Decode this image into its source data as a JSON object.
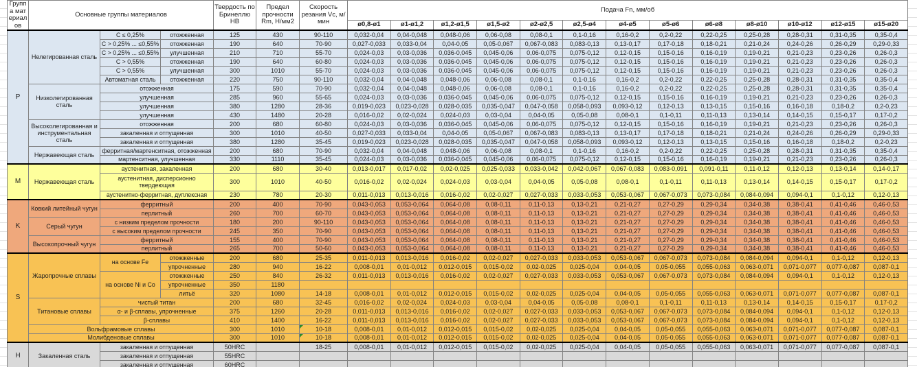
{
  "colors": {
    "sections": {
      "P": "#dce6f1",
      "M": "#feff9c",
      "K": "#efa87c",
      "S": "#f8c254",
      "H": "#d9d9d9"
    },
    "header_bg": "#ffffff",
    "inner_border": "#828282",
    "section_border": "#000000",
    "note_triangle": "#2e8b2e"
  },
  "table": {
    "header": {
      "group": "Группа материалов",
      "materials": "Основные группы материалов",
      "hardness": "Твердость по Бринеллю HB",
      "strength": "Предел прочности Rm, Н/мм2",
      "speed": "Скорость резания Vc, м/мин",
      "feed": "Подача Fn, мм/об",
      "feed_cols": [
        "ø0,8-ø1",
        "ø1-ø1,2",
        "ø1,2-ø1,5",
        "ø1,5-ø2",
        "ø2-ø2,5",
        "ø2,5-ø4",
        "ø4-ø5",
        "ø5-ø6",
        "ø6-ø8",
        "ø8-ø10",
        "ø10-ø12",
        "ø12-ø15",
        "ø15-ø20"
      ]
    },
    "feed_profiles": {
      "A": [
        "0,032-0,04",
        "0,04-0,048",
        "0,048-0,06",
        "0,06-0,08",
        "0,08-0,1",
        "0,1-0,16",
        "0,16-0,2",
        "0,2-0,22",
        "0,22-0,25",
        "0,25-0,28",
        "0,28-0,31",
        "0,31-0,35",
        "0,35-0,4"
      ],
      "B": [
        "0,027-0,033",
        "0,033-0,04",
        "0,04-0,05",
        "0,05-0,067",
        "0,067-0,083",
        "0,083-0,13",
        "0,13-0,17",
        "0,17-0,18",
        "0,18-0,21",
        "0,21-0,24",
        "0,24-0,26",
        "0,26-0,29",
        "0,29-0,33"
      ],
      "C": [
        "0,024-0,03",
        "0,03-0,036",
        "0,036-0,045",
        "0,045-0,06",
        "0,06-0,075",
        "0,075-0,12",
        "0,12-0,15",
        "0,15-0,16",
        "0,16-0,19",
        "0,19-0,21",
        "0,21-0,23",
        "0,23-0,26",
        "0,26-0,3"
      ],
      "D": [
        "0,019-0,023",
        "0,023-0,028",
        "0,028-0,035",
        "0,035-0,047",
        "0,047-0,058",
        "0,058-0,093",
        "0,093-0,12",
        "0,12-0,13",
        "0,13-0,15",
        "0,15-0,16",
        "0,16-0,18",
        "0,18-0,2",
        "0,2-0,23"
      ],
      "E": [
        "0,016-0,02",
        "0,02-0,024",
        "0,024-0,03",
        "0,03-0,04",
        "0,04-0,05",
        "0,05-0,08",
        "0,08-0,1",
        "0,1-0,11",
        "0,11-0,13",
        "0,13-0,14",
        "0,14-0,15",
        "0,15-0,17",
        "0,17-0,2"
      ],
      "F": [
        "0,013-0,017",
        "0,017-0,02",
        "0,02-0,025",
        "0,025-0,033",
        "0,033-0,042",
        "0,042-0,067",
        "0,067-0,083",
        "0,083-0,091",
        "0,091-0,11",
        "0,11-0,12",
        "0,12-0,13",
        "0,13-0,14",
        "0,14-0,17"
      ],
      "G": [
        "0,011-0,013",
        "0,013-0,016",
        "0,016-0,02",
        "0,02-0,027",
        "0,027-0,033",
        "0,033-0,053",
        "0,053-0,067",
        "0,067-0,073",
        "0,073-0,084",
        "0,084-0,094",
        "0,094-0,1",
        "0,1-0,12",
        "0,12-0,13"
      ],
      "H8": [
        "0,043-0,053",
        "0,053-0,064",
        "0,064-0,08",
        "0,08-0,11",
        "0,11-0,13",
        "0,13-0,21",
        "0,21-0,27",
        "0,27-0,29",
        "0,29-0,34",
        "0,34-0,38",
        "0,38-0,41",
        "0,41-0,46",
        "0,46-0,53"
      ],
      "I": [
        "0,008-0,01",
        "0,01-0,012",
        "0,012-0,015",
        "0,015-0,02",
        "0,02-0,025",
        "0,025-0,04",
        "0,04-0,05",
        "0,05-0,055",
        "0,055-0,063",
        "0,063-0,071",
        "0,071-0,077",
        "0,077-0,087",
        "0,087-0,1"
      ]
    },
    "rows": [
      {
        "g": "P",
        "gs": 15,
        "m": "Нелегированная сталь",
        "ms": 6,
        "s1": "C ≤ 0,25%",
        "s2": "отожженная",
        "hb": "125",
        "rm": "430",
        "vc": "90-110",
        "feed": "A"
      },
      {
        "s1": "C > 0,25% ... ≤0,55%",
        "s2": "отожженная",
        "hb": "190",
        "rm": "640",
        "vc": "70-90",
        "feed": "B"
      },
      {
        "s1": "C > 0,25% ... ≤0,55%",
        "s2": "улучшенная",
        "hb": "210",
        "rm": "710",
        "vc": "55-70",
        "feed": "C"
      },
      {
        "s1": "C > 0,55%",
        "s2": "отожженная",
        "hb": "190",
        "rm": "640",
        "vc": "60-80",
        "feed": "C"
      },
      {
        "s1": "C > 0,55%",
        "s2": "улучшенная",
        "hb": "300",
        "rm": "1010",
        "vc": "55-70",
        "feed": "C"
      },
      {
        "s1": "Автоматная сталь",
        "s2": "отожженная",
        "hb": "220",
        "rm": "750",
        "vc": "90-110",
        "feed": "A"
      },
      {
        "m": "Низколегированная сталь",
        "ms": 4,
        "s12": "отожженная",
        "hb": "175",
        "rm": "590",
        "vc": "70-90",
        "feed": "A"
      },
      {
        "s12": "улучшенная",
        "hb": "285",
        "rm": "960",
        "vc": "55-65",
        "feed": "C"
      },
      {
        "s12": "улучшенная",
        "hb": "380",
        "rm": "1280",
        "vc": "28-36",
        "feed": "D"
      },
      {
        "s12": "улучшенная",
        "hb": "430",
        "rm": "1480",
        "vc": "20-28",
        "feed": "E"
      },
      {
        "m": "Высоколегированная и инструментальная сталь",
        "ms": 3,
        "s12": "отожженная",
        "hb": "200",
        "rm": "680",
        "vc": "60-80",
        "feed": "C"
      },
      {
        "s12": "закаленная и отпущенная",
        "hb": "300",
        "rm": "1010",
        "vc": "40-50",
        "feed": "B"
      },
      {
        "s12": "закаленная и отпущенная",
        "hb": "380",
        "rm": "1280",
        "vc": "35-45",
        "feed": "D"
      },
      {
        "m": "Нержавеющая сталь",
        "ms": 2,
        "s12": "ферритная/мартенситная, отожженная",
        "hb": "200",
        "rm": "680",
        "vc": "70-90",
        "feed": "A"
      },
      {
        "s12": "мартенситная, улучшенная",
        "hb": "330",
        "rm": "1110",
        "vc": "35-45",
        "feed": "C"
      },
      {
        "g": "M",
        "gs": 3,
        "m": "Нержавеющая сталь",
        "ms": 3,
        "s12": "аустенитная, закаленная",
        "hb": "200",
        "rm": "680",
        "vc": "30-40",
        "feed": "F"
      },
      {
        "s12": "аустенитная, дисперсионно твердеющая",
        "hb": "300",
        "rm": "1010",
        "vc": "40-50",
        "feed": "E",
        "tall": true
      },
      {
        "s12": "аустенитно-ферритная, дуплексная",
        "hb": "230",
        "rm": "780",
        "vc": "20-30",
        "feed": "G"
      },
      {
        "g": "K",
        "gs": 6,
        "m": "Ковкий литейный чугун",
        "ms": 2,
        "s12": "ферритный",
        "hb": "200",
        "rm": "400",
        "vc": "70-90",
        "feed": "H8"
      },
      {
        "s12": "перлитный",
        "hb": "260",
        "rm": "700",
        "vc": "60-70",
        "feed": "H8"
      },
      {
        "m": "Серый чугун",
        "ms": 2,
        "s12": "с низким пределом прочности",
        "hb": "180",
        "rm": "200",
        "vc": "90-110",
        "feed": "H8"
      },
      {
        "s12": "с высоким пределом прочности",
        "hb": "245",
        "rm": "350",
        "vc": "70-90",
        "feed": "H8"
      },
      {
        "m": "Высокопрочный чугун",
        "ms": 2,
        "s12": "ферритный",
        "hb": "155",
        "rm": "400",
        "vc": "70-90",
        "feed": "H8"
      },
      {
        "s12": "перлитный",
        "hb": "265",
        "rm": "700",
        "vc": "50-60",
        "feed": "H8"
      },
      {
        "g": "S",
        "gs": 10,
        "m": "Жаропрочные сплавы",
        "ms": 5,
        "s1": "на основе Fe",
        "s1s": 2,
        "s2": "отожженные",
        "hb": "200",
        "rm": "680",
        "vc": "25-35",
        "feed": "G"
      },
      {
        "s2": "упрочненные",
        "hb": "280",
        "rm": "940",
        "vc": "16-22",
        "feed": "I"
      },
      {
        "s1": "на основе Ni и Co",
        "s1s": 3,
        "s2": "отожженные",
        "hb": "250",
        "rm": "840",
        "vc": "26-32",
        "feed": "G"
      },
      {
        "s2": "упрочненные",
        "hb": "350",
        "rm": "1180",
        "vc": "",
        "feed": null
      },
      {
        "s2": "литьё",
        "hb": "320",
        "rm": "1080",
        "vc": "14-18",
        "feed": "I"
      },
      {
        "m": "Титановые сплавы",
        "ms": 3,
        "s12": "чистый титан",
        "hb": "200",
        "rm": "680",
        "vc": "32-45",
        "feed": "E"
      },
      {
        "s12": "α- и β-сплавы, упрочненные",
        "hb": "375",
        "rm": "1260",
        "vc": "20-28",
        "feed": "G"
      },
      {
        "s12": "β-сплавы",
        "hb": "410",
        "rm": "1400",
        "vc": "16-22",
        "feed": "G"
      },
      {
        "wide": "Вольфрамовые сплавы",
        "hb": "300",
        "rm": "1010",
        "vc": "10-18",
        "feed": "I",
        "note": true
      },
      {
        "wide": "Молибденовые сплавы",
        "hb": "300",
        "rm": "1010",
        "vc": "10-18",
        "feed": "I",
        "note": true
      },
      {
        "g": "H",
        "gs": 3,
        "m": "Закаленная сталь",
        "ms": 3,
        "s12": "закаленная и отпущенная",
        "hb": "50HRC",
        "rm": "",
        "vc": "18-25",
        "feed": "I"
      },
      {
        "s12": "закаленная и отпущенная",
        "hb": "55HRC",
        "rm": "",
        "vc": "",
        "feed": null
      },
      {
        "s12": "закаленная и отпущенная",
        "hb": "60HRC",
        "rm": "",
        "vc": "",
        "feed": null
      }
    ]
  }
}
